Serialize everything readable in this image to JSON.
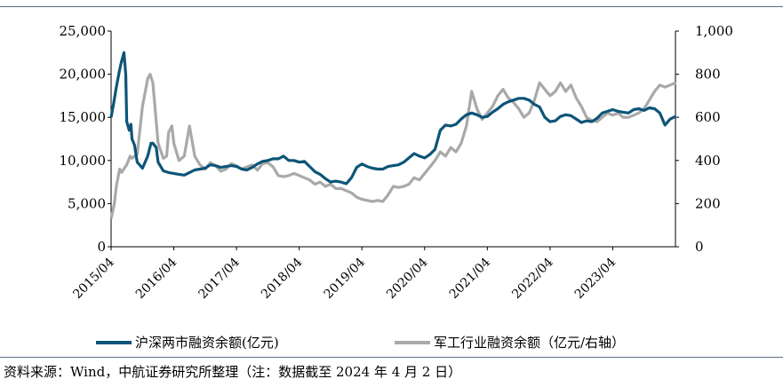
{
  "source_note": "资料来源：Wind，中航证券研究所整理（注：数据截至 2024 年 4 月 2 日）",
  "colors": {
    "series1": "#0d5578",
    "series2": "#a9a9a9",
    "axis": "#000000",
    "rule": "#5b6f86"
  },
  "chart_data": {
    "type": "line",
    "x_tick_labels": [
      "2015/04",
      "2016/04",
      "2017/04",
      "2018/04",
      "2019/04",
      "2020/04",
      "2021/04",
      "2022/04",
      "2023/04"
    ],
    "x_range": [
      "2015-04",
      "2024-04"
    ],
    "y_left": {
      "ylim": [
        0,
        25000
      ],
      "ticks": [
        "0",
        "5,000",
        "10,000",
        "15,000",
        "20,000",
        "25,000"
      ]
    },
    "y_right": {
      "ylim": [
        0,
        1000
      ],
      "ticks": [
        "0",
        "200",
        "400",
        "600",
        "800",
        "1,000"
      ]
    },
    "grid": false,
    "legend_position": "bottom",
    "series": [
      {
        "name": "沪深两市融资余额(亿元)",
        "axis": "left",
        "color": "#0d5578",
        "points": [
          [
            "2015-04",
            15000
          ],
          [
            "2015-04-15",
            16500
          ],
          [
            "2015-05",
            18500
          ],
          [
            "2015-05-20",
            20500
          ],
          [
            "2015-06",
            21500
          ],
          [
            "2015-06-15",
            22500
          ],
          [
            "2015-06-25",
            20000
          ],
          [
            "2015-07",
            14500
          ],
          [
            "2015-07-15",
            13500
          ],
          [
            "2015-07-25",
            14200
          ],
          [
            "2015-08",
            12500
          ],
          [
            "2015-08-15",
            11800
          ],
          [
            "2015-09",
            9800
          ],
          [
            "2015-10",
            9100
          ],
          [
            "2015-11",
            10500
          ],
          [
            "2015-11-20",
            12000
          ],
          [
            "2015-12",
            12000
          ],
          [
            "2015-12-20",
            11500
          ],
          [
            "2016-01",
            9800
          ],
          [
            "2016-02",
            8800
          ],
          [
            "2016-03",
            8600
          ],
          [
            "2016-04",
            8500
          ],
          [
            "2016-05",
            8400
          ],
          [
            "2016-06",
            8300
          ],
          [
            "2016-07",
            8600
          ],
          [
            "2016-08",
            8900
          ],
          [
            "2016-09",
            9000
          ],
          [
            "2016-10",
            9100
          ],
          [
            "2016-11",
            9500
          ],
          [
            "2016-12",
            9400
          ],
          [
            "2017-01",
            9200
          ],
          [
            "2017-02",
            9300
          ],
          [
            "2017-03",
            9400
          ],
          [
            "2017-04",
            9300
          ],
          [
            "2017-05",
            9000
          ],
          [
            "2017-06",
            8900
          ],
          [
            "2017-07",
            9200
          ],
          [
            "2017-08",
            9600
          ],
          [
            "2017-09",
            9900
          ],
          [
            "2017-10",
            10000
          ],
          [
            "2017-11",
            10200
          ],
          [
            "2017-12",
            10200
          ],
          [
            "2018-01",
            10500
          ],
          [
            "2018-02",
            10000
          ],
          [
            "2018-03",
            10000
          ],
          [
            "2018-04",
            9800
          ],
          [
            "2018-05",
            9900
          ],
          [
            "2018-06",
            9300
          ],
          [
            "2018-07",
            8700
          ],
          [
            "2018-08",
            8400
          ],
          [
            "2018-09",
            7900
          ],
          [
            "2018-10",
            7500
          ],
          [
            "2018-11",
            7600
          ],
          [
            "2018-12",
            7500
          ],
          [
            "2019-01",
            7300
          ],
          [
            "2019-02",
            8000
          ],
          [
            "2019-03",
            9200
          ],
          [
            "2019-04",
            9600
          ],
          [
            "2019-05",
            9300
          ],
          [
            "2019-06",
            9100
          ],
          [
            "2019-07",
            9000
          ],
          [
            "2019-08",
            9000
          ],
          [
            "2019-09",
            9300
          ],
          [
            "2019-10",
            9400
          ],
          [
            "2019-11",
            9500
          ],
          [
            "2019-12",
            9800
          ],
          [
            "2020-01",
            10300
          ],
          [
            "2020-02",
            10800
          ],
          [
            "2020-03",
            10500
          ],
          [
            "2020-04",
            10300
          ],
          [
            "2020-05",
            10700
          ],
          [
            "2020-06",
            11300
          ],
          [
            "2020-07",
            13500
          ],
          [
            "2020-08",
            14100
          ],
          [
            "2020-09",
            14000
          ],
          [
            "2020-10",
            14200
          ],
          [
            "2020-11",
            14800
          ],
          [
            "2020-12",
            15300
          ],
          [
            "2021-01",
            15500
          ],
          [
            "2021-02",
            15300
          ],
          [
            "2021-03",
            15000
          ],
          [
            "2021-04",
            15100
          ],
          [
            "2021-05",
            15600
          ],
          [
            "2021-06",
            16000
          ],
          [
            "2021-07",
            16500
          ],
          [
            "2021-08",
            16800
          ],
          [
            "2021-09",
            17000
          ],
          [
            "2021-10",
            17200
          ],
          [
            "2021-11",
            17200
          ],
          [
            "2021-12",
            17000
          ],
          [
            "2022-01",
            16500
          ],
          [
            "2022-02",
            16200
          ],
          [
            "2022-03",
            15000
          ],
          [
            "2022-04",
            14500
          ],
          [
            "2022-05",
            14600
          ],
          [
            "2022-06",
            15100
          ],
          [
            "2022-07",
            15300
          ],
          [
            "2022-08",
            15200
          ],
          [
            "2022-09",
            14800
          ],
          [
            "2022-10",
            14400
          ],
          [
            "2022-11",
            14600
          ],
          [
            "2022-12",
            14500
          ],
          [
            "2023-01",
            14900
          ],
          [
            "2023-02",
            15500
          ],
          [
            "2023-03",
            15700
          ],
          [
            "2023-04",
            15900
          ],
          [
            "2023-05",
            15700
          ],
          [
            "2023-06",
            15600
          ],
          [
            "2023-07",
            15500
          ],
          [
            "2023-08",
            15900
          ],
          [
            "2023-09",
            16000
          ],
          [
            "2023-10",
            15800
          ],
          [
            "2023-11",
            16100
          ],
          [
            "2023-12",
            16000
          ],
          [
            "2024-01",
            15500
          ],
          [
            "2024-02",
            14100
          ],
          [
            "2024-03",
            14800
          ],
          [
            "2024-04-02",
            15100
          ]
        ]
      },
      {
        "name": "军工行业融资余额（亿元/右轴）",
        "axis": "right",
        "color": "#a9a9a9",
        "points": [
          [
            "2015-04",
            130
          ],
          [
            "2015-04-20",
            200
          ],
          [
            "2015-05",
            280
          ],
          [
            "2015-05-20",
            360
          ],
          [
            "2015-06",
            345
          ],
          [
            "2015-07",
            380
          ],
          [
            "2015-07-20",
            420
          ],
          [
            "2015-08",
            410
          ],
          [
            "2015-09",
            430
          ],
          [
            "2015-10",
            650
          ],
          [
            "2015-11",
            780
          ],
          [
            "2015-11-15",
            800
          ],
          [
            "2015-12",
            760
          ],
          [
            "2016-01",
            480
          ],
          [
            "2016-02",
            410
          ],
          [
            "2016-02-20",
            420
          ],
          [
            "2016-03",
            530
          ],
          [
            "2016-03-20",
            560
          ],
          [
            "2016-04",
            480
          ],
          [
            "2016-05",
            400
          ],
          [
            "2016-06",
            420
          ],
          [
            "2016-07",
            560
          ],
          [
            "2016-08",
            420
          ],
          [
            "2016-09",
            380
          ],
          [
            "2016-10",
            360
          ],
          [
            "2016-11",
            390
          ],
          [
            "2016-12",
            375
          ],
          [
            "2017-01",
            350
          ],
          [
            "2017-02",
            360
          ],
          [
            "2017-03",
            385
          ],
          [
            "2017-04",
            375
          ],
          [
            "2017-05",
            360
          ],
          [
            "2017-06",
            370
          ],
          [
            "2017-07",
            380
          ],
          [
            "2017-08",
            355
          ],
          [
            "2017-09",
            385
          ],
          [
            "2017-10",
            390
          ],
          [
            "2017-11",
            370
          ],
          [
            "2017-12",
            330
          ],
          [
            "2018-01",
            325
          ],
          [
            "2018-02",
            330
          ],
          [
            "2018-03",
            340
          ],
          [
            "2018-04",
            330
          ],
          [
            "2018-05",
            320
          ],
          [
            "2018-06",
            310
          ],
          [
            "2018-07",
            290
          ],
          [
            "2018-08",
            300
          ],
          [
            "2018-09",
            280
          ],
          [
            "2018-10",
            290
          ],
          [
            "2018-11",
            270
          ],
          [
            "2018-12",
            270
          ],
          [
            "2019-01",
            260
          ],
          [
            "2019-02",
            250
          ],
          [
            "2019-03",
            230
          ],
          [
            "2019-04",
            220
          ],
          [
            "2019-05",
            215
          ],
          [
            "2019-06",
            210
          ],
          [
            "2019-07",
            215
          ],
          [
            "2019-08",
            210
          ],
          [
            "2019-09",
            240
          ],
          [
            "2019-10",
            280
          ],
          [
            "2019-11",
            275
          ],
          [
            "2019-12",
            280
          ],
          [
            "2020-01",
            290
          ],
          [
            "2020-02",
            320
          ],
          [
            "2020-03",
            310
          ],
          [
            "2020-04",
            340
          ],
          [
            "2020-05",
            370
          ],
          [
            "2020-06",
            400
          ],
          [
            "2020-07",
            440
          ],
          [
            "2020-08",
            420
          ],
          [
            "2020-09",
            460
          ],
          [
            "2020-10",
            440
          ],
          [
            "2020-11",
            480
          ],
          [
            "2020-12",
            560
          ],
          [
            "2021-01",
            720
          ],
          [
            "2021-02",
            640
          ],
          [
            "2021-03",
            590
          ],
          [
            "2021-04",
            620
          ],
          [
            "2021-05",
            650
          ],
          [
            "2021-06",
            700
          ],
          [
            "2021-07",
            730
          ],
          [
            "2021-08",
            690
          ],
          [
            "2021-09",
            670
          ],
          [
            "2021-10",
            640
          ],
          [
            "2021-11",
            600
          ],
          [
            "2021-12",
            620
          ],
          [
            "2022-01",
            680
          ],
          [
            "2022-02",
            760
          ],
          [
            "2022-03",
            730
          ],
          [
            "2022-04",
            700
          ],
          [
            "2022-05",
            720
          ],
          [
            "2022-06",
            760
          ],
          [
            "2022-07",
            720
          ],
          [
            "2022-08",
            750
          ],
          [
            "2022-09",
            690
          ],
          [
            "2022-10",
            650
          ],
          [
            "2022-11",
            600
          ],
          [
            "2022-12",
            585
          ],
          [
            "2023-01",
            580
          ],
          [
            "2023-02",
            600
          ],
          [
            "2023-03",
            620
          ],
          [
            "2023-04",
            610
          ],
          [
            "2023-05",
            620
          ],
          [
            "2023-06",
            600
          ],
          [
            "2023-07",
            600
          ],
          [
            "2023-08",
            610
          ],
          [
            "2023-09",
            620
          ],
          [
            "2023-10",
            640
          ],
          [
            "2023-11",
            680
          ],
          [
            "2023-12",
            720
          ],
          [
            "2024-01",
            750
          ],
          [
            "2024-02",
            740
          ],
          [
            "2024-03",
            750
          ],
          [
            "2024-04-02",
            760
          ]
        ]
      }
    ]
  }
}
